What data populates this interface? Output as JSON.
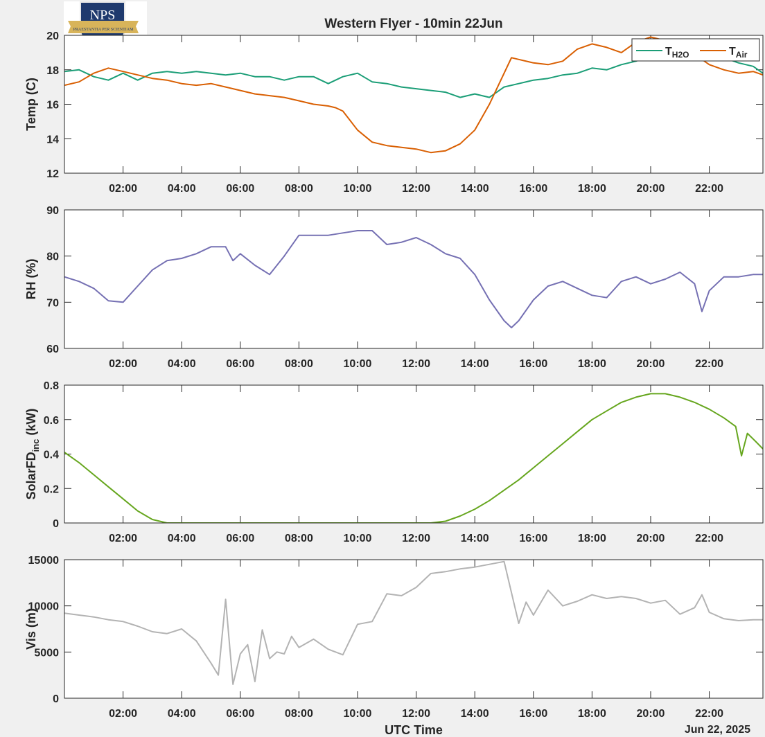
{
  "title": "Western Flyer - 10min 22Jun",
  "logo": {
    "text": "NPS",
    "motto": "PRAESTANTIA PER SCIENTIAM",
    "colors": {
      "navy": "#1f3a6e",
      "gold": "#d8b45a",
      "silver": "#e8e8e8"
    }
  },
  "colors": {
    "th2o": "#1b9e77",
    "tair": "#d95f02",
    "rh": "#7570b3",
    "solar": "#66a61e",
    "vis": "#b3b3b3"
  },
  "xaxis": {
    "label": "UTC Time",
    "tick_labels": [
      "02:00",
      "04:00",
      "06:00",
      "08:00",
      "10:00",
      "12:00",
      "14:00",
      "16:00",
      "18:00",
      "20:00",
      "22:00"
    ],
    "date_label": "Jun 22, 2025"
  },
  "chart_data": [
    {
      "type": "line",
      "ylabel": "Temp (C)",
      "ylim": [
        12,
        20
      ],
      "yticks": [
        "12",
        "14",
        "16",
        "18",
        "20"
      ],
      "xlim_hours": [
        0,
        23.83
      ],
      "legend": "top-right",
      "series": [
        {
          "key": "th2o",
          "name_main": "T",
          "name_sub": "H2O",
          "x": [
            0,
            0.5,
            1,
            1.5,
            2,
            2.5,
            3,
            3.5,
            4,
            4.5,
            5,
            5.5,
            6,
            6.5,
            7,
            7.5,
            8,
            8.5,
            9,
            9.5,
            10,
            10.5,
            11,
            11.5,
            12,
            12.5,
            13,
            13.5,
            14,
            14.5,
            15,
            15.5,
            16,
            16.5,
            17,
            17.5,
            18,
            18.5,
            19,
            19.5,
            20,
            20.5,
            21,
            21.5,
            22,
            22.5,
            23,
            23.5,
            23.83
          ],
          "y": [
            17.9,
            18.0,
            17.6,
            17.4,
            17.8,
            17.4,
            17.8,
            17.9,
            17.8,
            17.9,
            17.8,
            17.7,
            17.8,
            17.6,
            17.6,
            17.4,
            17.6,
            17.6,
            17.2,
            17.6,
            17.8,
            17.3,
            17.2,
            17.0,
            16.9,
            16.8,
            16.7,
            16.4,
            16.6,
            16.4,
            17.0,
            17.2,
            17.4,
            17.5,
            17.7,
            17.8,
            18.1,
            18.0,
            18.3,
            18.5,
            18.8,
            19.0,
            19.2,
            19.1,
            18.9,
            18.7,
            18.4,
            18.2,
            17.8
          ]
        },
        {
          "key": "tair",
          "name_main": "T",
          "name_sub": "Air",
          "x": [
            0,
            0.5,
            1,
            1.5,
            2,
            2.5,
            3,
            3.5,
            4,
            4.5,
            5,
            5.5,
            6,
            6.5,
            7,
            7.5,
            8,
            8.5,
            9,
            9.25,
            9.5,
            10,
            10.5,
            11,
            11.5,
            12,
            12.5,
            13,
            13.5,
            14,
            14.5,
            15,
            15.25,
            15.5,
            16,
            16.5,
            17,
            17.5,
            18,
            18.5,
            19,
            19.5,
            20,
            20.5,
            21,
            21.5,
            22,
            22.5,
            23,
            23.5,
            23.83
          ],
          "y": [
            17.1,
            17.3,
            17.8,
            18.1,
            17.9,
            17.7,
            17.5,
            17.4,
            17.2,
            17.1,
            17.2,
            17.0,
            16.8,
            16.6,
            16.5,
            16.4,
            16.2,
            16.0,
            15.9,
            15.8,
            15.6,
            14.5,
            13.8,
            13.6,
            13.5,
            13.4,
            13.2,
            13.3,
            13.7,
            14.5,
            16.0,
            17.8,
            18.7,
            18.6,
            18.4,
            18.3,
            18.5,
            19.2,
            19.5,
            19.3,
            19.0,
            19.6,
            19.9,
            19.7,
            19.3,
            18.9,
            18.3,
            18.0,
            17.8,
            17.9,
            17.7
          ]
        }
      ]
    },
    {
      "type": "line",
      "ylabel": "RH (%)",
      "ylim": [
        60,
        90
      ],
      "yticks": [
        "60",
        "70",
        "80",
        "90"
      ],
      "xlim_hours": [
        0,
        23.83
      ],
      "series": [
        {
          "key": "rh",
          "x": [
            0,
            0.5,
            1,
            1.5,
            2,
            2.5,
            3,
            3.5,
            4,
            4.5,
            5,
            5.5,
            5.75,
            6,
            6.5,
            7,
            7.5,
            8,
            8.5,
            9,
            9.5,
            10,
            10.5,
            11,
            11.5,
            12,
            12.5,
            13,
            13.5,
            14,
            14.5,
            15,
            15.25,
            15.5,
            16,
            16.5,
            17,
            17.5,
            18,
            18.5,
            19,
            19.5,
            20,
            20.5,
            21,
            21.5,
            21.75,
            22,
            22.5,
            23,
            23.5,
            23.83
          ],
          "y": [
            75.5,
            74.5,
            73.0,
            70.3,
            70.0,
            73.5,
            77.0,
            79.0,
            79.5,
            80.5,
            82.0,
            82.0,
            79.0,
            80.5,
            78.0,
            76.0,
            80.0,
            84.5,
            84.5,
            84.5,
            85.0,
            85.5,
            85.5,
            82.5,
            83.0,
            84.0,
            82.5,
            80.5,
            79.5,
            76.0,
            70.5,
            66.0,
            64.5,
            66.0,
            70.5,
            73.5,
            74.5,
            73.0,
            71.5,
            71.0,
            74.5,
            75.5,
            74.0,
            75.0,
            76.5,
            74.0,
            68.0,
            72.5,
            75.5,
            75.5,
            76.0,
            76.0
          ]
        }
      ]
    },
    {
      "type": "line",
      "ylabel_main": "SolarFD",
      "ylabel_sub": "inc",
      "ylabel_unit": " (kW)",
      "ylim": [
        0,
        0.8
      ],
      "yticks": [
        "0",
        "0.2",
        "0.4",
        "0.6",
        "0.8"
      ],
      "xlim_hours": [
        0,
        23.83
      ],
      "series": [
        {
          "key": "solar",
          "x": [
            0,
            0.5,
            1,
            1.5,
            2,
            2.5,
            3,
            3.5,
            4,
            5,
            6,
            7,
            8,
            9,
            10,
            11,
            12,
            12.5,
            13,
            13.5,
            14,
            14.5,
            15,
            15.5,
            16,
            16.5,
            17,
            17.5,
            18,
            18.5,
            19,
            19.5,
            20,
            20.5,
            21,
            21.5,
            22,
            22.5,
            22.9,
            23.1,
            23.3,
            23.6,
            23.83
          ],
          "y": [
            0.41,
            0.35,
            0.28,
            0.21,
            0.14,
            0.07,
            0.02,
            0,
            0,
            0,
            0,
            0,
            0,
            0,
            0,
            0,
            0,
            0,
            0.01,
            0.04,
            0.08,
            0.13,
            0.19,
            0.25,
            0.32,
            0.39,
            0.46,
            0.53,
            0.6,
            0.65,
            0.7,
            0.73,
            0.75,
            0.75,
            0.73,
            0.7,
            0.66,
            0.61,
            0.56,
            0.39,
            0.52,
            0.47,
            0.43
          ]
        }
      ]
    },
    {
      "type": "line",
      "ylabel": "Vis (m)",
      "ylim": [
        0,
        15000
      ],
      "yticks": [
        "0",
        "5000",
        "10000",
        "15000"
      ],
      "xlim_hours": [
        0,
        23.83
      ],
      "series": [
        {
          "key": "vis",
          "x": [
            0,
            0.5,
            1,
            1.5,
            2,
            2.5,
            3,
            3.5,
            4,
            4.5,
            5,
            5.25,
            5.5,
            5.75,
            6,
            6.25,
            6.5,
            6.75,
            7,
            7.25,
            7.5,
            7.75,
            8,
            8.5,
            9,
            9.5,
            10,
            10.5,
            11,
            11.5,
            12,
            12.5,
            13,
            13.5,
            14,
            14.5,
            15,
            15.5,
            15.75,
            16,
            16.5,
            17,
            17.5,
            18,
            18.5,
            19,
            19.5,
            20,
            20.5,
            21,
            21.5,
            21.75,
            22,
            22.5,
            23,
            23.5,
            23.83
          ],
          "y": [
            9200,
            9000,
            8800,
            8500,
            8300,
            7800,
            7200,
            7000,
            7500,
            6200,
            3800,
            2500,
            10700,
            1500,
            4800,
            5800,
            1800,
            7400,
            4300,
            5000,
            4800,
            6700,
            5500,
            6400,
            5300,
            4700,
            8000,
            8300,
            11300,
            11100,
            12000,
            13500,
            13700,
            14000,
            14200,
            14500,
            14800,
            8100,
            10400,
            9000,
            11700,
            10000,
            10500,
            11200,
            10800,
            11000,
            10800,
            10300,
            10600,
            9100,
            9800,
            11200,
            9300,
            8600,
            8400,
            8500,
            8500
          ]
        }
      ]
    }
  ]
}
